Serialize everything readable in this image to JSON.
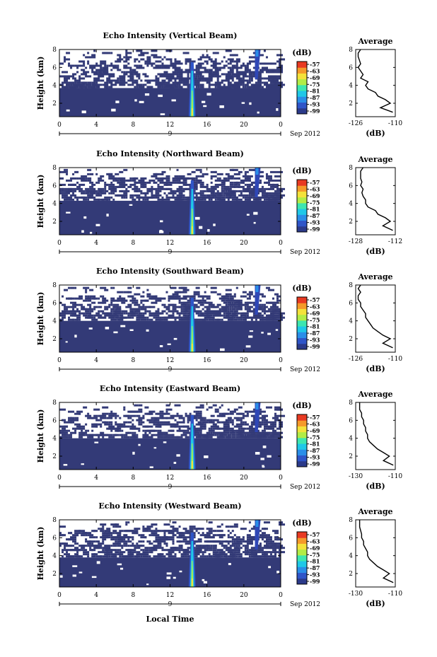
{
  "chart_data": {
    "type": "heatmap",
    "common": {
      "ylabel": "Height (km)",
      "yticks": [
        2,
        4,
        6,
        8
      ],
      "ylim": [
        0.5,
        8
      ],
      "xticks": [
        "0",
        "4",
        "8",
        "12",
        "16",
        "20",
        "0"
      ],
      "xlim": [
        0,
        24
      ],
      "date_tick": "9",
      "date_label": "Sep 2012",
      "colorbar_unit": "(dB)",
      "colorbar_ticks": [
        "-57",
        "-63",
        "-69",
        "-75",
        "-81",
        "-87",
        "-93",
        "-99"
      ],
      "colorbar_colors": [
        "#2b3a8a",
        "#2f55c8",
        "#2a8ee8",
        "#1fc8e8",
        "#3de6b0",
        "#b2ec46",
        "#f4e23a",
        "#f59a2a",
        "#e83a22"
      ],
      "background_color": "#333a77",
      "profile_title": "Average",
      "profile_xlabel": "(dB)",
      "profile_yticks": [
        2,
        4,
        6,
        8
      ],
      "xlabel": "Local Time"
    },
    "panels": [
      {
        "title": "Echo Intensity (Vertical Beam)",
        "solid_top_km": 3.7,
        "profile_xlim": [
          -126,
          -110
        ],
        "profile_xticks": [
          "-126",
          "-110"
        ],
        "profile": [
          [
            -111,
            1.0
          ],
          [
            -116,
            1.5
          ],
          [
            -112,
            2.0
          ],
          [
            -114,
            2.4
          ],
          [
            -117,
            2.8
          ],
          [
            -118,
            3.2
          ],
          [
            -121,
            3.6
          ],
          [
            -122,
            4.0
          ],
          [
            -121,
            4.4
          ],
          [
            -124,
            4.8
          ],
          [
            -123,
            5.2
          ],
          [
            -124,
            5.6
          ],
          [
            -125,
            6.0
          ],
          [
            -124,
            6.4
          ],
          [
            -124.5,
            6.8
          ],
          [
            -125,
            7.2
          ],
          [
            -125,
            7.6
          ],
          [
            -124,
            8.0
          ]
        ]
      },
      {
        "title": "Echo Intensity (Northward Beam)",
        "solid_top_km": 4.3,
        "profile_xlim": [
          -128,
          -112
        ],
        "profile_xticks": [
          "-128",
          "-112"
        ],
        "profile": [
          [
            -113,
            1.0
          ],
          [
            -117,
            1.5
          ],
          [
            -114,
            2.0
          ],
          [
            -116,
            2.4
          ],
          [
            -119,
            2.8
          ],
          [
            -120,
            3.2
          ],
          [
            -123,
            3.6
          ],
          [
            -124,
            4.0
          ],
          [
            -124,
            4.4
          ],
          [
            -125,
            4.8
          ],
          [
            -125.5,
            5.2
          ],
          [
            -125,
            5.6
          ],
          [
            -126,
            6.0
          ],
          [
            -125.5,
            6.4
          ],
          [
            -126,
            6.8
          ],
          [
            -126,
            7.2
          ],
          [
            -126,
            7.6
          ],
          [
            -125,
            8.0
          ]
        ]
      },
      {
        "title": "Echo Intensity (Southward Beam)",
        "solid_top_km": 4.0,
        "profile_xlim": [
          -126,
          -110
        ],
        "profile_xticks": [
          "-126",
          "-110"
        ],
        "profile": [
          [
            -111,
            1.0
          ],
          [
            -115,
            1.5
          ],
          [
            -112,
            2.0
          ],
          [
            -115,
            2.4
          ],
          [
            -117,
            2.8
          ],
          [
            -119,
            3.2
          ],
          [
            -120,
            3.6
          ],
          [
            -121,
            4.0
          ],
          [
            -122,
            4.4
          ],
          [
            -122,
            4.8
          ],
          [
            -123,
            5.2
          ],
          [
            -124,
            5.6
          ],
          [
            -124,
            6.0
          ],
          [
            -125,
            6.4
          ],
          [
            -125,
            6.8
          ],
          [
            -124,
            7.2
          ],
          [
            -125,
            7.6
          ],
          [
            -124,
            8.0
          ]
        ]
      },
      {
        "title": "Echo Intensity (Eastward Beam)",
        "solid_top_km": 4.0,
        "profile_xlim": [
          -130,
          -110
        ],
        "profile_xticks": [
          "-130",
          "-110"
        ],
        "profile": [
          [
            -111,
            1.0
          ],
          [
            -116,
            1.5
          ],
          [
            -113,
            2.0
          ],
          [
            -116,
            2.4
          ],
          [
            -119,
            2.8
          ],
          [
            -121,
            3.2
          ],
          [
            -123,
            3.6
          ],
          [
            -124,
            4.0
          ],
          [
            -124,
            4.4
          ],
          [
            -125,
            4.8
          ],
          [
            -125,
            5.2
          ],
          [
            -126,
            5.6
          ],
          [
            -126,
            6.0
          ],
          [
            -127,
            6.4
          ],
          [
            -127,
            6.8
          ],
          [
            -128,
            7.2
          ],
          [
            -128,
            7.6
          ],
          [
            -128,
            8.0
          ]
        ]
      },
      {
        "title": "Echo Intensity (Westward Beam)",
        "solid_top_km": 3.8,
        "profile_xlim": [
          -130,
          -110
        ],
        "profile_xticks": [
          "-130",
          "-110"
        ],
        "profile": [
          [
            -111,
            1.0
          ],
          [
            -116,
            1.5
          ],
          [
            -113,
            2.0
          ],
          [
            -116,
            2.4
          ],
          [
            -119,
            2.8
          ],
          [
            -121,
            3.2
          ],
          [
            -123,
            3.6
          ],
          [
            -124,
            4.0
          ],
          [
            -124,
            4.4
          ],
          [
            -125,
            4.8
          ],
          [
            -126,
            5.2
          ],
          [
            -126,
            5.6
          ],
          [
            -127,
            6.0
          ],
          [
            -127,
            6.4
          ],
          [
            -127.5,
            6.8
          ],
          [
            -128,
            7.2
          ],
          [
            -128,
            7.6
          ],
          [
            -128,
            8.0
          ]
        ]
      }
    ]
  }
}
